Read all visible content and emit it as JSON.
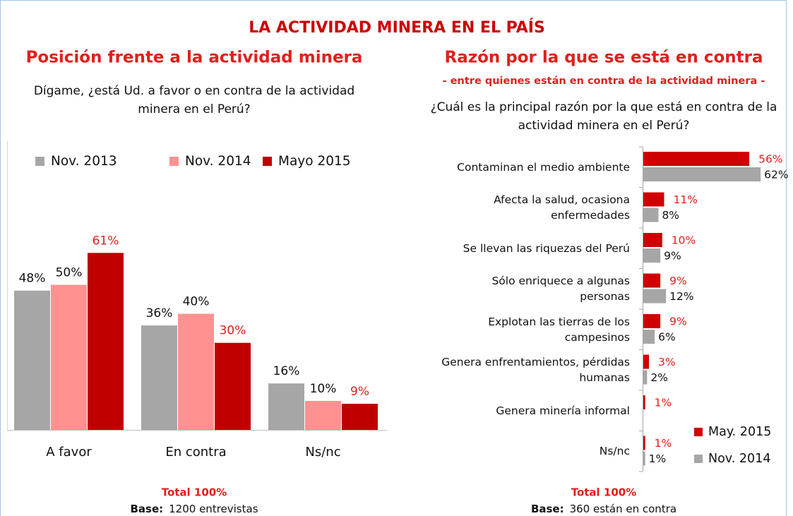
{
  "title": "LA ACTIVIDAD MINERA EN EL PAÍS",
  "chart_data": [
    {
      "type": "bar",
      "title": "Posición frente a la actividad minera",
      "question": "Dígame, ¿está Ud. a favor o en contra de la actividad minera en el Perú?",
      "categories": [
        "A favor",
        "En contra",
        "Ns/nc"
      ],
      "series": [
        {
          "name": "Nov. 2013",
          "color": "#a6a6a6",
          "label_color": "#111111",
          "values": [
            48,
            36,
            16
          ],
          "value_labels": [
            "48%",
            "36%",
            "16%"
          ]
        },
        {
          "name": "Nov. 2014",
          "color": "#ff9191",
          "label_color": "#111111",
          "values": [
            50,
            40,
            10
          ],
          "value_labels": [
            "50%",
            "40%",
            "10%"
          ]
        },
        {
          "name": "Mayo 2015",
          "color": "#c00000",
          "label_color": "#e0201b",
          "values": [
            61,
            30,
            9
          ],
          "value_labels": [
            "61%",
            "30%",
            "9%"
          ]
        }
      ],
      "legend": "top",
      "total": "Total 100%",
      "base_label": "Base:",
      "base": "1200 entrevistas"
    },
    {
      "type": "hbar",
      "title": "Razón por la que se está en contra",
      "subtitle": "- entre quienes están en contra de la actividad minera -",
      "question": "¿Cuál es la principal razón por la que está en contra de la actividad minera en el Perú?",
      "categories": [
        "Contaminan el medio ambiente",
        "Afecta la salud, ocasiona enfermedades",
        "Se llevan las riquezas del Perú",
        "Sólo enriquece a algunas personas",
        "Explotan las tierras de los campesinos",
        "Genera enfrentamientos, pérdidas humanas",
        "Genera minería informal",
        "Ns/nc"
      ],
      "series": [
        {
          "name": "May. 2015",
          "color": "#d00000",
          "label_color": "#e0201b",
          "values": [
            56,
            11,
            10,
            9,
            9,
            3,
            1,
            1
          ],
          "value_labels": [
            "56%",
            "11%",
            "10%",
            "9%",
            "9%",
            "3%",
            "1%",
            "1%"
          ]
        },
        {
          "name": "Nov. 2014",
          "color": "#a6a6a6",
          "label_color": "#111111",
          "values": [
            62,
            8,
            9,
            12,
            6,
            2,
            null,
            1
          ],
          "value_labels": [
            "62%",
            "8%",
            "9%",
            "12%",
            "6%",
            "2%",
            null,
            "1%"
          ]
        }
      ],
      "legend": "lower right",
      "total": "Total 100%",
      "base_label": "Base:",
      "base": "360 están en contra"
    }
  ]
}
